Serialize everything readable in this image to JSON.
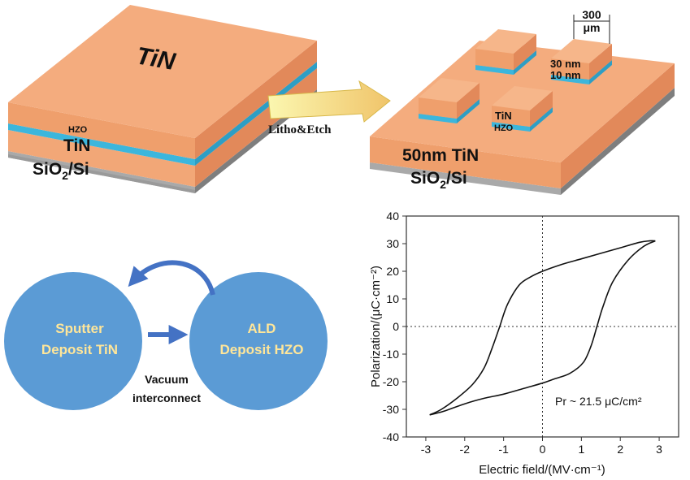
{
  "colors": {
    "tin": "#f2a777",
    "tin_side": "#e2895a",
    "hzo": "#3cb6dc",
    "sio2_top": "#cfcfcf",
    "sio2_side": "#8f8f8f",
    "circle": "#5b9bd5",
    "arrow": "#4472c4",
    "circle_text": "#ffe699",
    "process_arrow": "#f5f08a"
  },
  "left_stack": {
    "top_label": "TiN",
    "hzo_label": "HZO",
    "tin_label": "TiN",
    "substrate_label_main": "SiO",
    "substrate_label_sub": "2",
    "substrate_label_end": "/Si"
  },
  "process_arrow_label": "Litho&Etch",
  "right_stack": {
    "base_label": "50nm TiN",
    "substrate_label_main": "SiO",
    "substrate_label_sub": "2",
    "substrate_label_end": "/Si",
    "pad_tin_label": "TiN",
    "pad_hzo_label": "HZO",
    "thickness_top": "30 nm",
    "thickness_bottom": "10 nm",
    "size_value": "300",
    "size_unit": "μm"
  },
  "flow": {
    "circle_left_line1": "Sputter",
    "circle_left_line2": "Deposit TiN",
    "circle_right_line1": "ALD",
    "circle_right_line2": "Deposit HZO",
    "link_line1": "Vacuum",
    "link_line2": "interconnect"
  },
  "chart_data": {
    "type": "line",
    "xlabel": "Electric field/(MV·cm⁻¹)",
    "ylabel": "Polarization/(μC·cm⁻²)",
    "xlim": [
      -3.5,
      3.5
    ],
    "ylim": [
      -40,
      40
    ],
    "xticks": [
      -3,
      -2,
      -1,
      0,
      1,
      2,
      3
    ],
    "yticks": [
      -40,
      -30,
      -20,
      -10,
      0,
      10,
      20,
      30,
      40
    ],
    "annotation": "Pr ~ 21.5 μC/cm²",
    "series": [
      {
        "branch": "upper",
        "x": [
          -2.9,
          -2.6,
          -2.2,
          -1.8,
          -1.5,
          -1.3,
          -1.1,
          -0.9,
          -0.6,
          -0.3,
          0.0,
          0.5,
          1.0,
          1.5,
          2.0,
          2.5,
          2.75,
          2.9
        ],
        "y": [
          -32,
          -30,
          -26,
          -21,
          -15,
          -8,
          0,
          8,
          15,
          18,
          20,
          22.5,
          24.5,
          26.5,
          28.5,
          30.5,
          31,
          31
        ]
      },
      {
        "branch": "lower",
        "x": [
          2.9,
          2.6,
          2.2,
          1.8,
          1.55,
          1.4,
          1.25,
          1.05,
          0.7,
          0.3,
          0.0,
          -0.5,
          -1.0,
          -1.5,
          -2.0,
          -2.5,
          -2.75,
          -2.9
        ],
        "y": [
          31,
          29,
          24,
          16,
          7,
          0,
          -7,
          -13,
          -17,
          -19,
          -20.5,
          -22.5,
          -24.5,
          -26,
          -28,
          -30.5,
          -31.5,
          -32
        ]
      }
    ]
  }
}
